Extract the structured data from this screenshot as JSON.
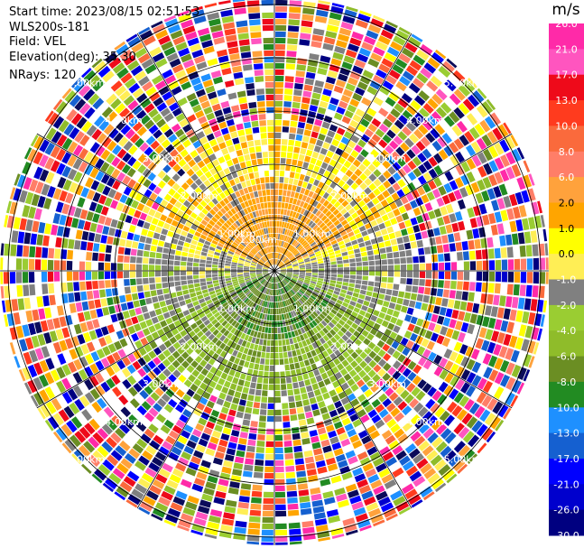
{
  "header": {
    "start_time": "Start time: 2023/08/15 02:51:53",
    "instrument": "WLS200s-181",
    "field": "Field: VEL",
    "elevation": "Elevation(deg): 35.30",
    "nrays": "NRays: 120"
  },
  "chart_data": {
    "type": "heatmap",
    "projection": "polar PPI",
    "field": "VEL",
    "units": "m/s",
    "n_rays": 120,
    "elevation_deg": 35.3,
    "range_rings_km": [
      1.0,
      2.0,
      3.0,
      4.0,
      5.0
    ],
    "ring_labels": {
      "1": "1.00km",
      "2": "2.00km",
      "3": "3.00km",
      "4": "4.00km",
      "5": "5.00km"
    },
    "max_range_km": 5.15,
    "spoke_angles_deg": [
      0,
      30,
      60,
      90,
      120,
      150,
      180,
      210,
      240,
      270,
      300,
      330
    ],
    "colorbar": {
      "label": "m/s",
      "ticks": [
        "26.0",
        "21.0",
        "17.0",
        "13.0",
        "10.0",
        "8.0",
        "6.0",
        "2.0",
        "1.0",
        "0.0",
        "-1.0",
        "-2.0",
        "-4.0",
        "-6.0",
        "-8.0",
        "-10.0",
        "-13.0",
        "-17.0",
        "-21.0",
        "-26.0",
        "-30.0"
      ],
      "segments": [
        {
          "from": 26,
          "to": 30,
          "color": "#ff2aa8"
        },
        {
          "from": 21,
          "to": 26,
          "color": "#ff55bf"
        },
        {
          "from": 17,
          "to": 21,
          "color": "#ee0a1a"
        },
        {
          "from": 13,
          "to": 17,
          "color": "#ff3b1e"
        },
        {
          "from": 10,
          "to": 13,
          "color": "#fa6a3c"
        },
        {
          "from": 8,
          "to": 10,
          "color": "#ff7e68"
        },
        {
          "from": 6,
          "to": 8,
          "color": "#ffa23c"
        },
        {
          "from": 2,
          "to": 6,
          "color": "#ffa500"
        },
        {
          "from": 1,
          "to": 2,
          "color": "#ffff00"
        },
        {
          "from": 0,
          "to": 1,
          "color": "#ffee55"
        },
        {
          "from": -1,
          "to": 0,
          "color": "#808080"
        },
        {
          "from": -2,
          "to": -1,
          "color": "#9acd32"
        },
        {
          "from": -4,
          "to": -2,
          "color": "#8fbc2a"
        },
        {
          "from": -6,
          "to": -4,
          "color": "#6b8e23"
        },
        {
          "from": -8,
          "to": -6,
          "color": "#228b22"
        },
        {
          "from": -10,
          "to": -8,
          "color": "#1e90ff"
        },
        {
          "from": -13,
          "to": -10,
          "color": "#1560d0"
        },
        {
          "from": -17,
          "to": -13,
          "color": "#0000ff"
        },
        {
          "from": -21,
          "to": -17,
          "color": "#0000cd"
        },
        {
          "from": -26,
          "to": -21,
          "color": "#000080"
        },
        {
          "from": -30,
          "to": -26,
          "color": "#0b0b5a"
        }
      ]
    },
    "velocity_pattern": {
      "north_sector": "positive (2 to 8 m/s, yellow/orange)",
      "south_sector": "negative (-2 to -8 m/s, green)",
      "east_west": "near zero (gray)",
      "outer_ranges": "noise, all values"
    }
  }
}
